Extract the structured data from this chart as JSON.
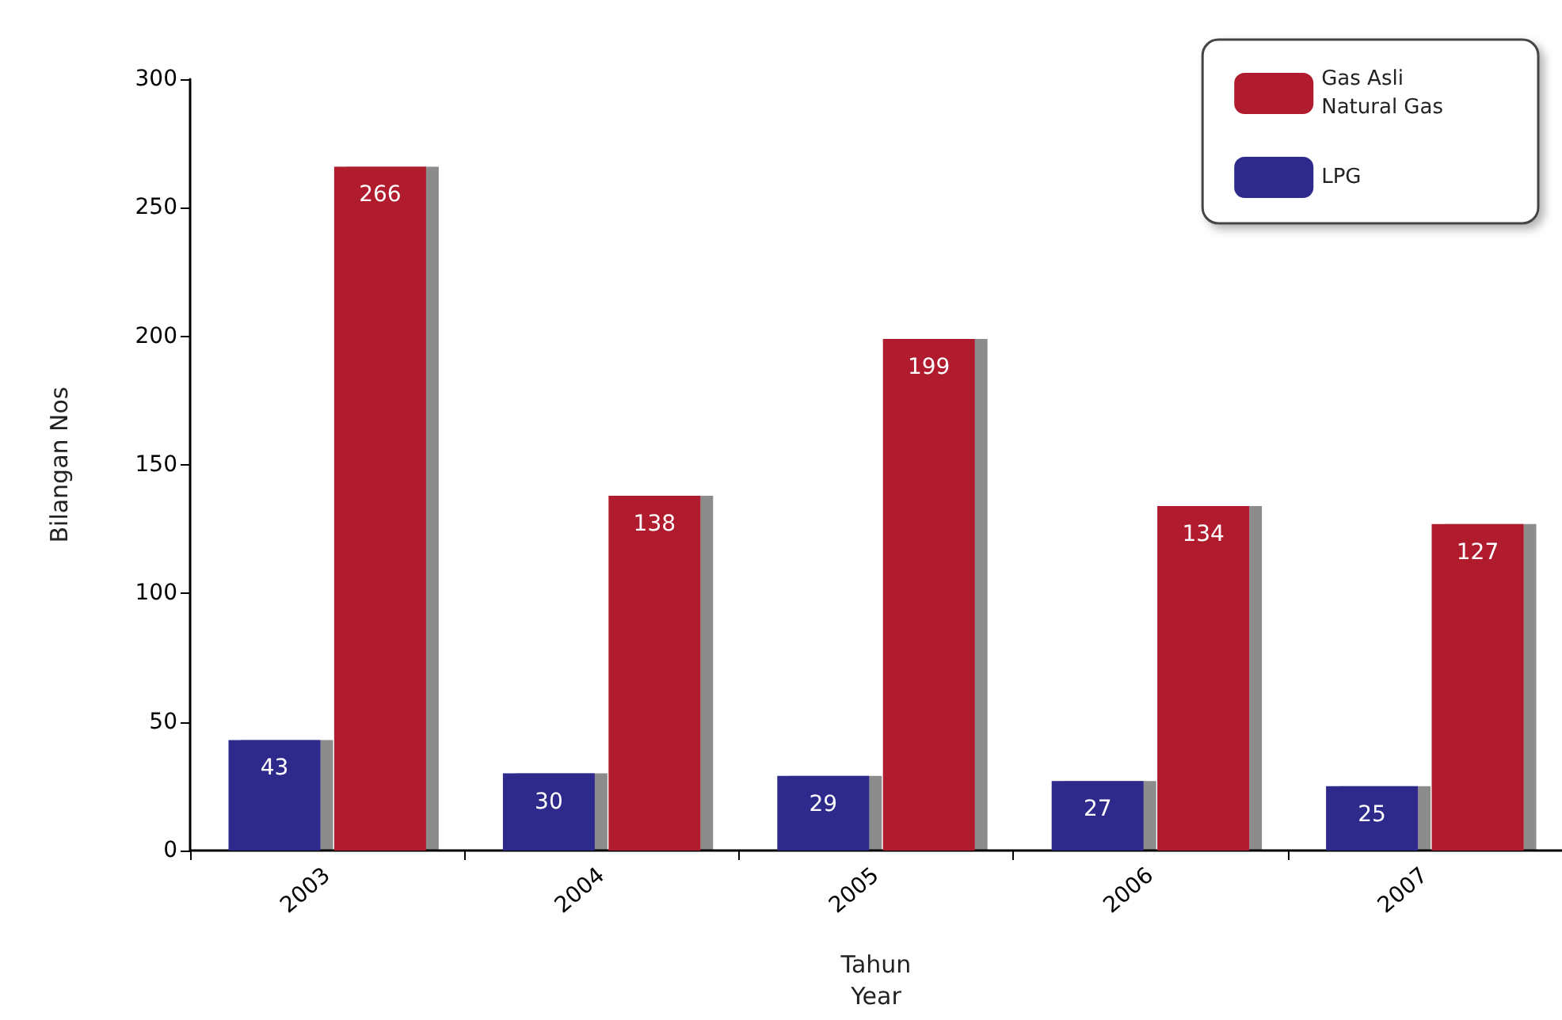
{
  "chart_data": {
    "type": "bar",
    "xlabel": "Tahun\nYear",
    "ylabel": "Bilangan Nos",
    "categories": [
      "2003",
      "2004",
      "2005",
      "2006",
      "2007"
    ],
    "series": [
      {
        "name": "LPG",
        "color": "#2e2a8c",
        "values": [
          43,
          30,
          29,
          27,
          25
        ]
      },
      {
        "name": "Gas Asli\nNatural Gas",
        "color": "#b01c2e",
        "values": [
          266,
          138,
          199,
          134,
          127
        ]
      }
    ],
    "ylim": [
      0,
      300
    ],
    "yticks": [
      0,
      50,
      100,
      150,
      200,
      250,
      300
    ],
    "grid": false,
    "legend": "top right",
    "data_labels": true
  }
}
